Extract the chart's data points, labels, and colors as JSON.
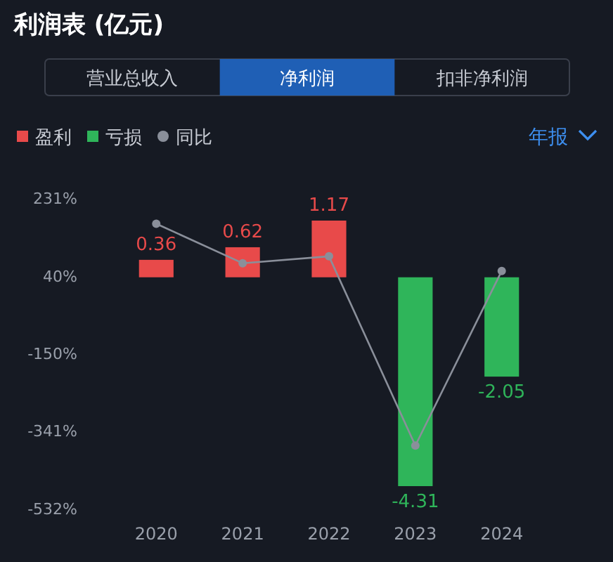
{
  "chart_data": {
    "type": "bar",
    "title": "利润表 (亿元)",
    "annotations": [
      "营业总收入",
      "净利润",
      "扣非净利润",
      "年报"
    ],
    "categories": [
      "2020",
      "2021",
      "2022",
      "2023",
      "2024"
    ],
    "stacked": true,
    "series": [
      {
        "name": "盈利",
        "color": "#e84a4a",
        "axis": "y2",
        "values": [
          0.36,
          0.62,
          1.17,
          null,
          null
        ],
        "value_labels": [
          "0.36",
          "0.62",
          "1.17",
          null,
          null
        ]
      },
      {
        "name": "亏损",
        "color": "#2fb55a",
        "axis": "y2",
        "values": [
          null,
          null,
          null,
          -4.31,
          -2.05
        ],
        "value_labels": [
          null,
          null,
          null,
          "-4.31",
          "-2.05"
        ]
      },
      {
        "name": "同比",
        "type": "line",
        "axis": "y",
        "color": "#8a8f9a",
        "values": [
          168,
          71,
          88,
          -377,
          52
        ]
      }
    ],
    "ylim": [
      -532,
      231
    ],
    "yticks": [
      {
        "value": 231,
        "label": "231%"
      },
      {
        "value": 40,
        "label": "40%"
      },
      {
        "value": -150,
        "label": "-150%"
      },
      {
        "value": -341,
        "label": "-341%"
      },
      {
        "value": -532,
        "label": "-532%"
      }
    ],
    "legend": "top left",
    "marker": "circle",
    "line_style": "solid"
  }
}
